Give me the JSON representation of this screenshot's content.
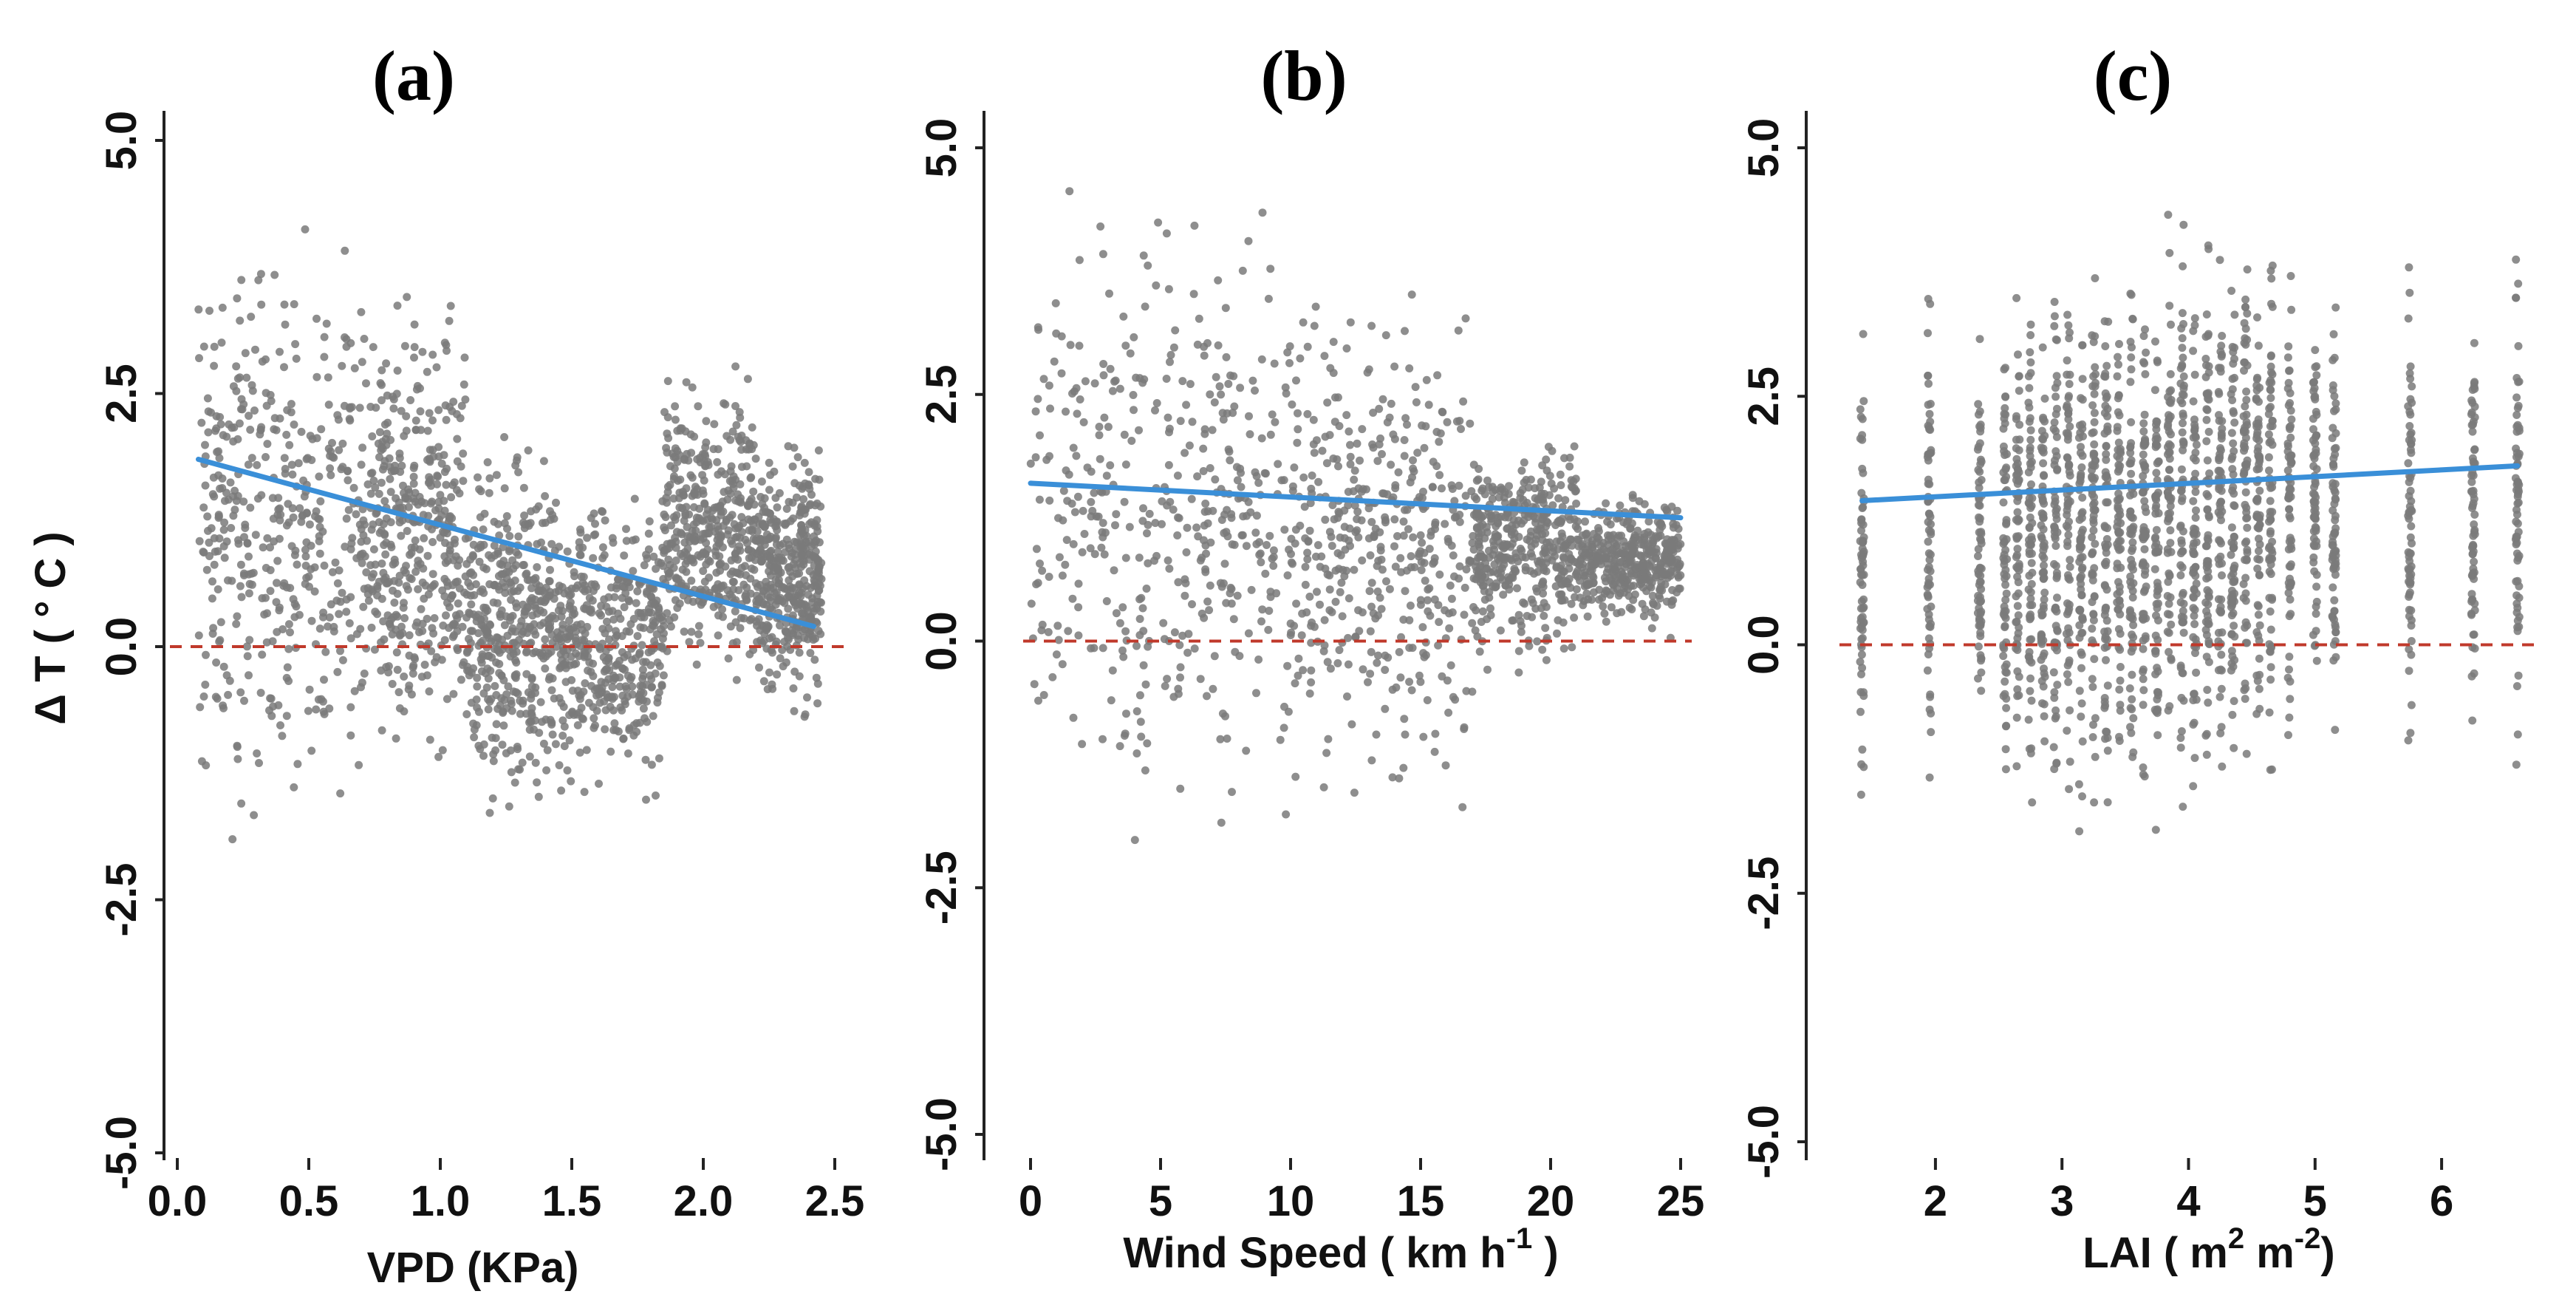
{
  "panels_meta": {
    "point_color": "#7a7a7a",
    "trend_color": "#3a8fd8",
    "reference_color": "#c0392b",
    "reference_y": 0.0
  },
  "chart_data": [
    {
      "type": "scatter",
      "title": "(a)",
      "xlabel": "VPD (KPa)",
      "ylabel": "Δ T ( ° C )",
      "xlim": [
        0.0,
        2.5
      ],
      "ylim": [
        -5.0,
        5.0
      ],
      "x_ticks": [
        0.0,
        0.5,
        1.0,
        1.5,
        2.0,
        2.5
      ],
      "x_tick_labels": [
        "0.0",
        "0.5",
        "1.0",
        "1.5",
        "2.0",
        "2.5"
      ],
      "y_ticks": [
        -5.0,
        -2.5,
        0.0,
        2.5,
        5.0
      ],
      "y_tick_labels": [
        "-5.0",
        "-2.5",
        "0.0",
        "2.5",
        "5.0"
      ],
      "grid": false,
      "trend": {
        "x": [
          0.08,
          2.42
        ],
        "y": [
          1.85,
          0.2
        ]
      },
      "reference_line": {
        "y": 0.0
      },
      "point_clusters": [
        {
          "x": [
            0.08,
            0.7
          ],
          "y": [
            -2.3,
            4.8
          ]
        },
        {
          "x": [
            0.7,
            1.1
          ],
          "y": [
            -1.5,
            3.8
          ]
        },
        {
          "x": [
            1.1,
            1.45
          ],
          "y": [
            -2.0,
            2.4
          ]
        },
        {
          "x": [
            1.45,
            1.85
          ],
          "y": [
            -1.7,
            1.8
          ]
        },
        {
          "x": [
            1.85,
            2.2
          ],
          "y": [
            -0.6,
            3.0
          ]
        },
        {
          "x": [
            2.2,
            2.45
          ],
          "y": [
            -0.8,
            2.2
          ]
        }
      ]
    },
    {
      "type": "scatter",
      "title": "(b)",
      "xlabel": "Wind Speed ( km h",
      "xlabel_sup": "-1",
      "xlabel_end": " )",
      "xlim": [
        0,
        25
      ],
      "ylim": [
        -5.0,
        5.0
      ],
      "x_ticks": [
        0,
        5,
        10,
        15,
        20,
        25
      ],
      "x_tick_labels": [
        "0",
        "5",
        "10",
        "15",
        "20",
        "25"
      ],
      "y_ticks": [
        -5.0,
        -2.5,
        0.0,
        2.5,
        5.0
      ],
      "y_tick_labels": [
        "-5.0",
        "-2.5",
        "0.0",
        "2.5",
        "5.0"
      ],
      "grid": false,
      "trend": {
        "x": [
          0,
          25
        ],
        "y": [
          1.6,
          1.25
        ]
      },
      "reference_line": {
        "y": 0.0
      },
      "point_clusters": [
        {
          "x": [
            0,
            10
          ],
          "y": [
            -2.2,
            4.8
          ]
        },
        {
          "x": [
            10,
            17
          ],
          "y": [
            -1.9,
            4.0
          ]
        },
        {
          "x": [
            17,
            21
          ],
          "y": [
            -0.4,
            2.3
          ]
        },
        {
          "x": [
            21,
            25
          ],
          "y": [
            0.0,
            1.6
          ]
        }
      ]
    },
    {
      "type": "scatter",
      "title": "(c)",
      "xlabel": "LAI ( m",
      "xlabel_sup": "2",
      "xlabel_mid": " m",
      "xlabel_sup2": "-2",
      "xlabel_end": ")",
      "xlim": [
        1.3,
        6.7
      ],
      "ylim": [
        -5.0,
        5.0
      ],
      "x_ticks": [
        2,
        3,
        4,
        5,
        6
      ],
      "x_tick_labels": [
        "2",
        "3",
        "4",
        "5",
        "6"
      ],
      "y_ticks": [
        -5.0,
        -2.5,
        0.0,
        2.5,
        5.0
      ],
      "y_tick_labels": [
        "-5.0",
        "-2.5",
        "0.0",
        "2.5",
        "5.0"
      ],
      "grid": false,
      "trend": {
        "x": [
          1.42,
          6.6
        ],
        "y": [
          1.45,
          1.8
        ]
      },
      "reference_line": {
        "y": 0.0
      },
      "lai_columns": [
        1.42,
        1.95,
        2.35,
        2.55,
        2.65,
        2.75,
        2.85,
        2.95,
        3.05,
        3.15,
        3.25,
        3.35,
        3.45,
        3.55,
        3.65,
        3.75,
        3.85,
        3.95,
        4.05,
        4.15,
        4.25,
        4.35,
        4.45,
        4.55,
        4.65,
        4.8,
        5.0,
        5.15,
        5.75,
        6.25,
        6.6
      ],
      "lai_column_ranges": [
        [
          -2.0,
          3.6
        ],
        [
          -1.9,
          4.2
        ],
        [
          -1.6,
          3.5
        ],
        [
          -2.2,
          4.0
        ],
        [
          -2.0,
          3.9
        ],
        [
          -2.1,
          4.2
        ],
        [
          -2.0,
          4.0
        ],
        [
          -2.2,
          4.4
        ],
        [
          -2.0,
          4.3
        ],
        [
          -2.1,
          4.0
        ],
        [
          -2.0,
          4.5
        ],
        [
          -2.2,
          4.2
        ],
        [
          -2.0,
          4.3
        ],
        [
          -2.2,
          4.4
        ],
        [
          -2.1,
          4.0
        ],
        [
          -2.3,
          4.5
        ],
        [
          -2.0,
          4.7
        ],
        [
          -2.2,
          4.8
        ],
        [
          -2.0,
          4.3
        ],
        [
          -2.1,
          4.4
        ],
        [
          -2.2,
          4.5
        ],
        [
          -1.9,
          4.0
        ],
        [
          -2.0,
          4.9
        ],
        [
          -1.8,
          4.4
        ],
        [
          -1.9,
          4.8
        ],
        [
          -1.6,
          4.5
        ],
        [
          -1.4,
          4.3
        ],
        [
          -1.5,
          4.0
        ],
        [
          -2.0,
          4.5
        ],
        [
          -1.6,
          3.7
        ],
        [
          -1.7,
          4.2
        ]
      ]
    }
  ]
}
